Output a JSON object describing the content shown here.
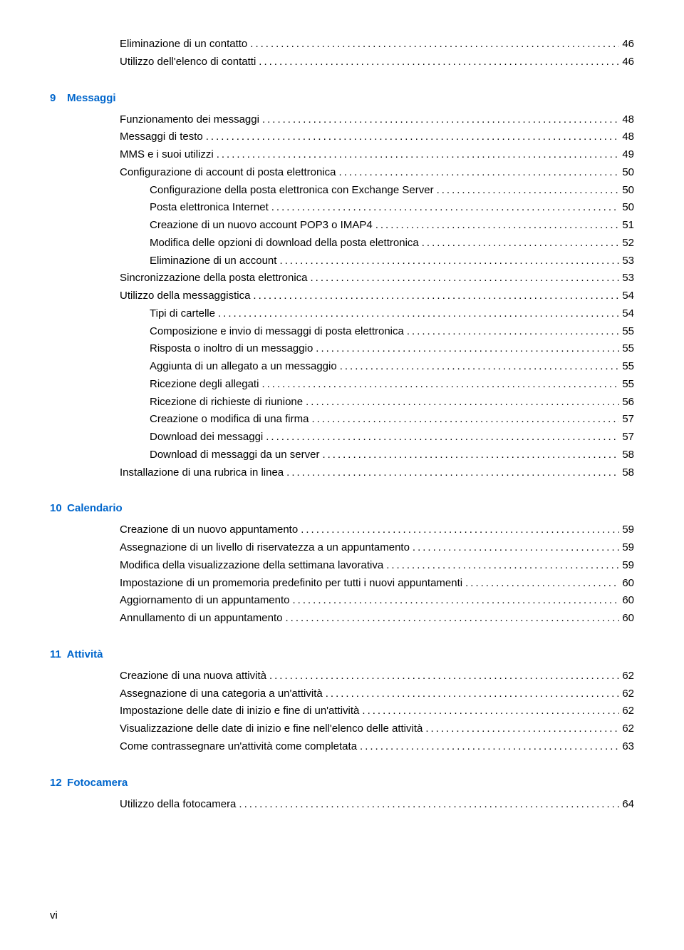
{
  "colors": {
    "link": "#0066cc",
    "text": "#000000",
    "background": "#ffffff"
  },
  "typography": {
    "font_family": "Arial, Helvetica, sans-serif",
    "body_size_pt": 11,
    "heading_weight": "bold"
  },
  "page_number": "vi",
  "sections": [
    {
      "num": "",
      "title": "",
      "entries": [
        {
          "indent": 2,
          "label": "Eliminazione di un contatto",
          "page": "46"
        },
        {
          "indent": 2,
          "label": "Utilizzo dell'elenco di contatti",
          "page": "46"
        }
      ]
    },
    {
      "num": "9",
      "title": "Messaggi",
      "entries": [
        {
          "indent": 2,
          "label": "Funzionamento dei messaggi",
          "page": "48"
        },
        {
          "indent": 2,
          "label": "Messaggi di testo",
          "page": "48"
        },
        {
          "indent": 2,
          "label": "MMS e i suoi utilizzi",
          "page": "49"
        },
        {
          "indent": 2,
          "label": "Configurazione di account di posta elettronica",
          "page": "50"
        },
        {
          "indent": 3,
          "label": "Configurazione della posta elettronica con Exchange Server",
          "page": "50"
        },
        {
          "indent": 3,
          "label": "Posta elettronica Internet",
          "page": "50"
        },
        {
          "indent": 3,
          "label": "Creazione di un nuovo account POP3 o IMAP4",
          "page": "51"
        },
        {
          "indent": 3,
          "label": "Modifica delle opzioni di download della posta elettronica",
          "page": "52"
        },
        {
          "indent": 3,
          "label": "Eliminazione di un account",
          "page": "53"
        },
        {
          "indent": 2,
          "label": "Sincronizzazione della posta elettronica",
          "page": "53"
        },
        {
          "indent": 2,
          "label": "Utilizzo della messaggistica",
          "page": "54"
        },
        {
          "indent": 3,
          "label": "Tipi di cartelle",
          "page": "54"
        },
        {
          "indent": 3,
          "label": "Composizione e invio di messaggi di posta elettronica",
          "page": "55"
        },
        {
          "indent": 3,
          "label": "Risposta o inoltro di un messaggio",
          "page": "55"
        },
        {
          "indent": 3,
          "label": "Aggiunta di un allegato a un messaggio",
          "page": "55"
        },
        {
          "indent": 3,
          "label": "Ricezione degli allegati",
          "page": "55"
        },
        {
          "indent": 3,
          "label": "Ricezione di richieste di riunione",
          "page": "56"
        },
        {
          "indent": 3,
          "label": "Creazione o modifica di una firma",
          "page": "57"
        },
        {
          "indent": 3,
          "label": "Download dei messaggi",
          "page": "57"
        },
        {
          "indent": 3,
          "label": "Download di messaggi da un server",
          "page": "58"
        },
        {
          "indent": 2,
          "label": "Installazione di una rubrica in linea",
          "page": "58"
        }
      ]
    },
    {
      "num": "10",
      "title": "Calendario",
      "entries": [
        {
          "indent": 2,
          "label": "Creazione di un nuovo appuntamento",
          "page": "59"
        },
        {
          "indent": 2,
          "label": "Assegnazione di un livello di riservatezza a un appuntamento",
          "page": "59"
        },
        {
          "indent": 2,
          "label": "Modifica della visualizzazione della settimana lavorativa",
          "page": "59"
        },
        {
          "indent": 2,
          "label": "Impostazione di un promemoria predefinito per tutti i nuovi appuntamenti",
          "page": "60"
        },
        {
          "indent": 2,
          "label": "Aggiornamento di un appuntamento",
          "page": "60"
        },
        {
          "indent": 2,
          "label": "Annullamento di un appuntamento",
          "page": "60"
        }
      ]
    },
    {
      "num": "11",
      "title": "Attività",
      "entries": [
        {
          "indent": 2,
          "label": "Creazione di una nuova attività",
          "page": "62"
        },
        {
          "indent": 2,
          "label": "Assegnazione di una categoria a un'attività",
          "page": "62"
        },
        {
          "indent": 2,
          "label": "Impostazione delle date di inizio e fine di un'attività",
          "page": "62"
        },
        {
          "indent": 2,
          "label": "Visualizzazione delle date di inizio e fine nell'elenco delle attività",
          "page": "62"
        },
        {
          "indent": 2,
          "label": "Come contrassegnare un'attività come completata",
          "page": "63"
        }
      ]
    },
    {
      "num": "12",
      "title": "Fotocamera",
      "entries": [
        {
          "indent": 2,
          "label": "Utilizzo della fotocamera",
          "page": "64"
        }
      ]
    }
  ]
}
